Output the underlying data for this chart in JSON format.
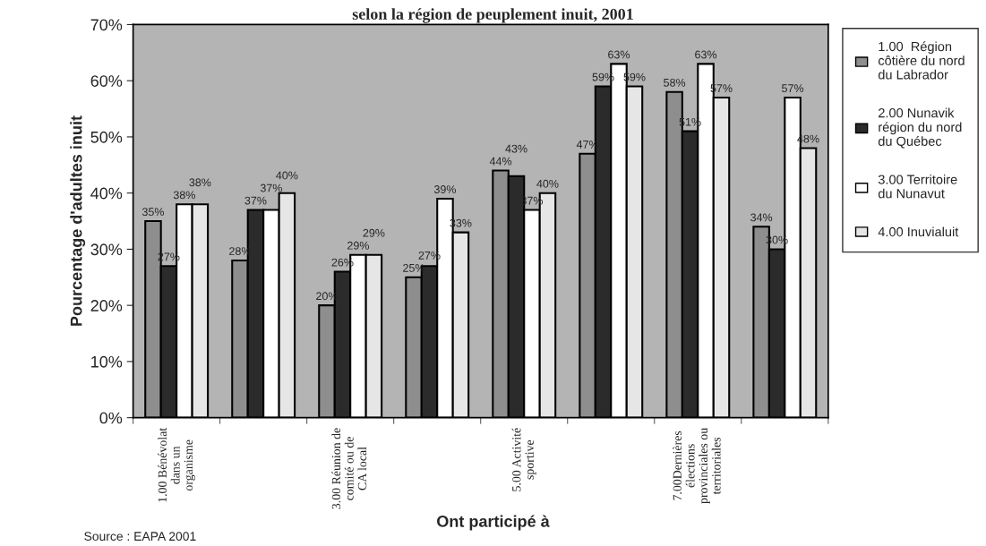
{
  "chart_data": {
    "type": "bar",
    "title": "selon la région de peuplement inuit, 2001",
    "xlabel": "Ont participé à",
    "ylabel": "Pourcentage d'adultes inuit",
    "categories": [
      "1.00 Bénévolat\ndans un\norganisme",
      null,
      "3.00 Réunion de\ncomité ou de\nCA local",
      null,
      "5.00 Activité\nsportive",
      null,
      "7.00Dernières\nélections\nprovinciales ou\nterritoriales",
      null
    ],
    "series": [
      {
        "name": "1.00  Région\ncôtière du nord\ndu Labrador",
        "color": "#8e8e8e",
        "values": [
          35,
          28,
          20,
          25,
          44,
          47,
          58,
          34
        ],
        "value_labels": [
          "35%",
          "28%",
          "20%",
          "25%",
          "44%",
          "47%",
          "58%",
          "34%"
        ]
      },
      {
        "name": "2.00 Nunavik\nrégion du nord\ndu Québec",
        "color": "#2b2b2b",
        "values": [
          27,
          37,
          26,
          27,
          43,
          59,
          51,
          30
        ],
        "value_labels": [
          "27%",
          "37%",
          "26%",
          "27%",
          "43%",
          "59%",
          "51%",
          "30%"
        ]
      },
      {
        "name": "3.00 Territoire\ndu Nunavut",
        "color": "#ffffff",
        "values": [
          38,
          37,
          29,
          39,
          37,
          63,
          63,
          57
        ],
        "value_labels": [
          "38%",
          "37%",
          "29%",
          "39%",
          "37%",
          "63%",
          "63%",
          "57%"
        ]
      },
      {
        "name": "4.00 Inuvialuit",
        "color": "#e6e6e6",
        "values": [
          38,
          40,
          29,
          33,
          40,
          59,
          57,
          48
        ],
        "value_labels": [
          "38%",
          "40%",
          "29%",
          "33%",
          "40%",
          "59%",
          "57%",
          "48%"
        ]
      }
    ],
    "ylim": [
      0,
      70
    ],
    "yticks": [
      {
        "value": 0,
        "label": "0%"
      },
      {
        "value": 10,
        "label": "10%"
      },
      {
        "value": 20,
        "label": "20%"
      },
      {
        "value": 30,
        "label": "30%"
      },
      {
        "value": 40,
        "label": "40%"
      },
      {
        "value": 50,
        "label": "50%"
      },
      {
        "value": 60,
        "label": "60%"
      },
      {
        "value": 70,
        "label": "70%"
      }
    ],
    "grid": false,
    "legend": "right",
    "annotations": [
      "Source : EAPA 2001"
    ]
  }
}
